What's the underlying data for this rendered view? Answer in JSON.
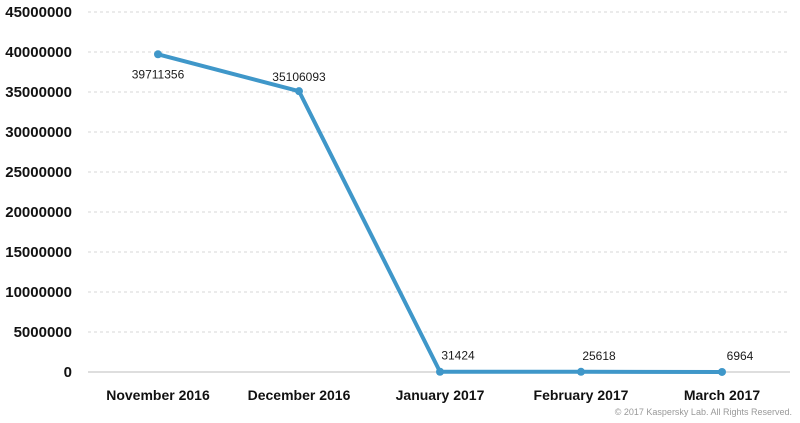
{
  "chart_data": {
    "type": "line",
    "categories": [
      "November 2016",
      "December 2016",
      "January 2017",
      "February 2017",
      "March 2017"
    ],
    "series": [
      {
        "values": [
          39711356,
          35106093,
          31424,
          25618,
          6964
        ],
        "color": "#3f97c9"
      }
    ],
    "y_ticks": [
      "0",
      "5000000",
      "10000000",
      "15000000",
      "20000000",
      "25000000",
      "30000000",
      "35000000",
      "40000000",
      "45000000"
    ],
    "ylim": [
      0,
      45000000
    ],
    "data_labels": [
      "39711356",
      "35106093",
      "31424",
      "25618",
      "6964"
    ],
    "grid": true,
    "grid_style": "dashed",
    "legend": false
  },
  "copyright": "© 2017 Kaspersky Lab. All Rights Reserved."
}
